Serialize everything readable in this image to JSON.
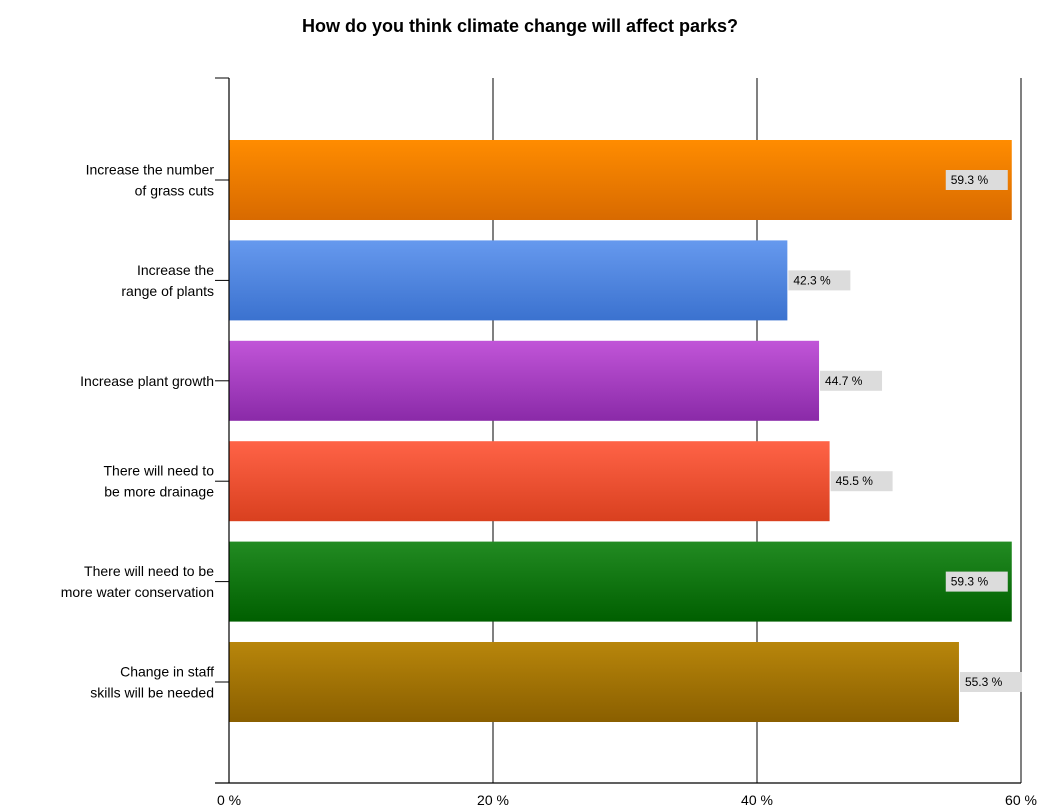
{
  "chart_data": {
    "type": "bar",
    "orientation": "horizontal",
    "title": "How do you think climate change will affect parks?",
    "categories": [
      [
        "Increase the number",
        "of grass cuts"
      ],
      [
        "Increase the",
        "range of plants"
      ],
      [
        "Increase plant growth"
      ],
      [
        "There will need to",
        "be more drainage"
      ],
      [
        "There will need to be",
        "more water conservation"
      ],
      [
        "Change in staff",
        "skills will be needed"
      ]
    ],
    "values": [
      59.3,
      42.3,
      44.7,
      45.5,
      59.3,
      55.3
    ],
    "data_labels": [
      "59.3 %",
      "42.3 %",
      "44.7 %",
      "45.5 %",
      "59.3 %",
      "55.3 %"
    ],
    "bar_colors": [
      [
        "#ff8c00",
        "#d86a00"
      ],
      [
        "#6699ee",
        "#3b72cf"
      ],
      [
        "#c155d8",
        "#8a2aa8"
      ],
      [
        "#ff6347",
        "#d9401f"
      ],
      [
        "#228b22",
        "#005f00"
      ],
      [
        "#b8860b",
        "#8a5f00"
      ]
    ],
    "xlim": [
      0,
      60
    ],
    "xticks": [
      0,
      20,
      40,
      60
    ],
    "xtick_labels": [
      "0 %",
      "20 %",
      "40 %",
      "60 %"
    ],
    "grid": "vertical",
    "legend": "none"
  }
}
